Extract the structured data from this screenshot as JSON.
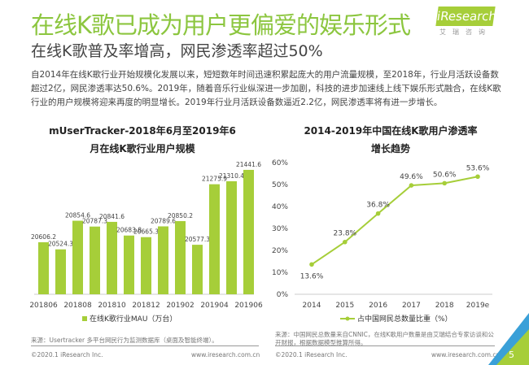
{
  "header": {
    "title": "在线K歌已成为用户更偏爱的娱乐形式",
    "subtitle": "在线K歌普及率增高，网民渗透率超过50%",
    "logo": "iResearch",
    "logo_cn": "艾瑞咨询",
    "body": "自2014年在线K歌行业开始规模化发展以来，短短数年时间迅速积累起庞大的用户流量规模，至2018年，行业月活跃设备数超过2亿，网民渗透率达50.6%。2019年，随着音乐行业纵深进一步加剧，科技的进步加速线上线下娱乐形式融合，在线K歌行业的用户规模将迎来再度的明显增长。2019年行业月活跃设备数逼近2.2亿，网民渗透率将有进一步增长。"
  },
  "chart_data": [
    {
      "type": "bar",
      "title": "mUserTracker-2018年6月至2019年6月在线K歌行业用户规模",
      "categories": [
        "201806",
        "201807",
        "201808",
        "201809",
        "201810",
        "201811",
        "201812",
        "201901",
        "201902",
        "201903",
        "201904",
        "201905",
        "201906"
      ],
      "tick_labels": [
        "201806",
        "201808",
        "201810",
        "201812",
        "201902",
        "201904",
        "201906"
      ],
      "series": [
        {
          "name": "在线K歌行业MAU（万台）",
          "values": [
            20606.2,
            20524.3,
            20854.6,
            20787.3,
            20841.6,
            20683.8,
            20665.3,
            20789.6,
            20850.2,
            20577.3,
            21275.9,
            21310.4,
            21441.6
          ]
        }
      ],
      "color": "#a6ce39",
      "legend": "bottom"
    },
    {
      "type": "line",
      "title": "2014-2019年中国在线K歌用户渗透率增长趋势",
      "categories": [
        "2014",
        "2015",
        "2016",
        "2017",
        "2018",
        "2019e"
      ],
      "series": [
        {
          "name": "占中国网民总数量比重（%）",
          "values": [
            13.6,
            23.8,
            36.8,
            49.6,
            50.6,
            53.6
          ]
        }
      ],
      "ylim": [
        0,
        60
      ],
      "yticks": [
        "0%",
        "10%",
        "20%",
        "30%",
        "40%",
        "50%",
        "60%"
      ],
      "color": "#a6ce39",
      "legend": "bottom"
    }
  ],
  "footer": {
    "source_left": "来源：Usertracker 多平台网民行为监测数据库（桌面及智能终端）。",
    "source_right": "来源：中国网民总数量来自CNNIC，在线K歌用户数量是由艾瑞结合专家访谈和公开财报，根据数据模型推算所得。",
    "copyright": "©2020.1 iResearch Inc.",
    "url": "www.iresearch.com.cn",
    "page": "5"
  }
}
